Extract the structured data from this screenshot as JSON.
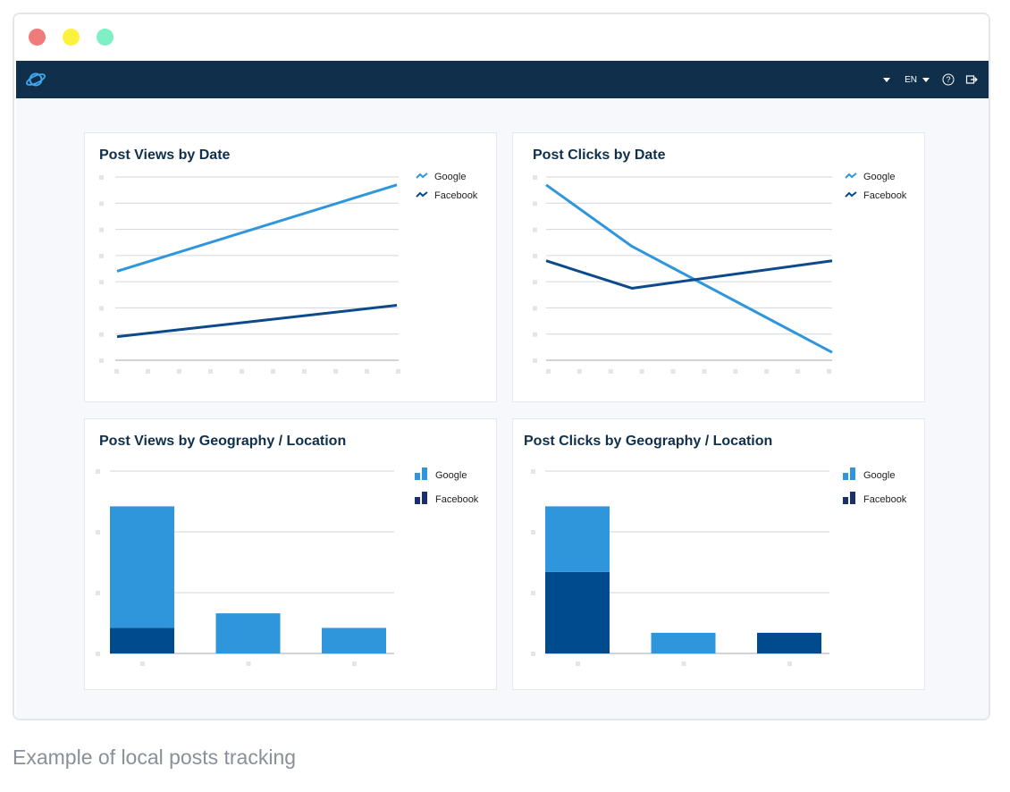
{
  "window": {
    "controls": [
      {
        "name": "close",
        "color": "#ef7b7b"
      },
      {
        "name": "minimize",
        "color": "#fbf23e"
      },
      {
        "name": "maximize",
        "color": "#7ff0c6"
      }
    ]
  },
  "appbar": {
    "logo_icon": "planet-icon",
    "language": "EN",
    "icons": [
      "dropdown-caret-icon",
      "help-icon",
      "logout-icon"
    ]
  },
  "colors": {
    "google": "#3096dc",
    "facebook_line": "#0d4a8c",
    "facebook_bar": "#004b8d",
    "facebook_bar_dark": "#19306b"
  },
  "cards": {
    "views_by_date": {
      "title": "Post Views by Date"
    },
    "clicks_by_date": {
      "title": "Post Clicks by Date"
    },
    "views_by_geo": {
      "title": "Post Views by Geography / Location"
    },
    "clicks_by_geo": {
      "title": "Post Clicks by Geography / Location"
    }
  },
  "chart_data": [
    {
      "type": "line",
      "title": "Post Views by Date",
      "x": [
        0,
        1
      ],
      "ylim": [
        0,
        7
      ],
      "series": [
        {
          "name": "Google",
          "values": [
            3.4,
            6.7
          ]
        },
        {
          "name": "Facebook",
          "values": [
            0.9,
            2.1
          ]
        }
      ]
    },
    {
      "type": "line",
      "title": "Post Clicks by Date",
      "x": [
        0,
        0.3,
        1
      ],
      "ylim": [
        0,
        7
      ],
      "series": [
        {
          "name": "Google",
          "values": [
            6.7,
            4.35,
            0.3
          ]
        },
        {
          "name": "Facebook",
          "values": [
            3.8,
            2.75,
            3.8
          ]
        }
      ]
    },
    {
      "type": "bar",
      "title": "Post Views by Geography / Location",
      "ylim": [
        0,
        3
      ],
      "series": [
        {
          "name": "Facebook",
          "values": [
            0.42,
            0,
            0
          ]
        },
        {
          "name": "Google",
          "values": [
            2.0,
            0.66,
            0.42
          ]
        }
      ]
    },
    {
      "type": "bar",
      "title": "Post Clicks by Geography / Location",
      "ylim": [
        0,
        3
      ],
      "series": [
        {
          "name": "Facebook",
          "values": [
            1.34,
            0,
            0.34
          ]
        },
        {
          "name": "Google",
          "values": [
            1.08,
            0.34,
            0
          ]
        }
      ]
    }
  ],
  "legend": {
    "google": "Google",
    "facebook": "Facebook"
  },
  "caption": "Example of local posts tracking"
}
